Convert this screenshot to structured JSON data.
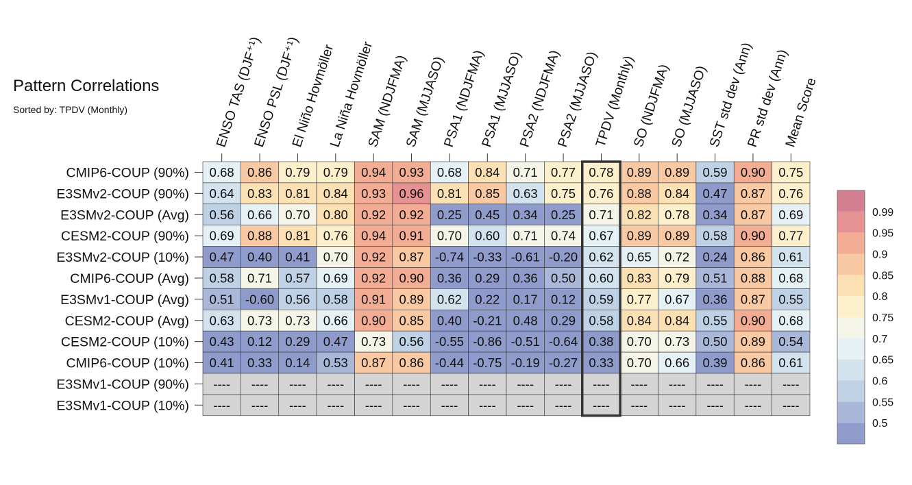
{
  "header": {
    "title": "Pattern Correlations",
    "subtitle": "Sorted by: TPDV (Monthly)"
  },
  "chart_data": {
    "type": "heatmap",
    "title": "Pattern Correlations",
    "subtitle": "Sorted by: TPDV (Monthly)",
    "highlight_column": "TPDV (Monthly)",
    "missing_label": "----",
    "columns": [
      "ENSO TAS (DJF⁺¹)",
      "ENSO PSL (DJF⁺¹)",
      "El Niño Hovmöller",
      "La Niña Hovmöller",
      "SAM (NDJFMA)",
      "SAM (MJJASO)",
      "PSA1 (NDJFMA)",
      "PSA1 (MJJASO)",
      "PSA2 (NDJFMA)",
      "PSA2 (MJJASO)",
      "TPDV (Monthly)",
      "SO (NDJFMA)",
      "SO (MJJASO)",
      "SST std dev (Ann)",
      "PR std dev (Ann)",
      "Mean Score"
    ],
    "rows": [
      {
        "name": "CMIP6-COUP (90%)",
        "values": [
          0.68,
          0.86,
          0.79,
          0.79,
          0.94,
          0.93,
          0.68,
          0.84,
          0.71,
          0.77,
          0.78,
          0.89,
          0.89,
          0.59,
          0.9,
          0.75
        ]
      },
      {
        "name": "E3SMv2-COUP (90%)",
        "values": [
          0.64,
          0.83,
          0.81,
          0.84,
          0.93,
          0.96,
          0.81,
          0.85,
          0.63,
          0.75,
          0.76,
          0.88,
          0.84,
          0.47,
          0.87,
          0.76
        ]
      },
      {
        "name": "E3SMv2-COUP (Avg)",
        "values": [
          0.56,
          0.66,
          0.7,
          0.8,
          0.92,
          0.92,
          0.25,
          0.45,
          0.34,
          0.25,
          0.71,
          0.82,
          0.78,
          0.34,
          0.87,
          0.69
        ]
      },
      {
        "name": "CESM2-COUP (90%)",
        "values": [
          0.69,
          0.88,
          0.81,
          0.76,
          0.94,
          0.91,
          0.7,
          0.6,
          0.71,
          0.74,
          0.67,
          0.89,
          0.89,
          0.58,
          0.9,
          0.77
        ]
      },
      {
        "name": "E3SMv2-COUP (10%)",
        "values": [
          0.47,
          0.4,
          0.41,
          0.7,
          0.92,
          0.87,
          -0.74,
          -0.33,
          -0.61,
          -0.2,
          0.62,
          0.65,
          0.72,
          0.24,
          0.86,
          0.61
        ]
      },
      {
        "name": "CMIP6-COUP (Avg)",
        "values": [
          0.58,
          0.71,
          0.57,
          0.69,
          0.92,
          0.9,
          0.36,
          0.29,
          0.36,
          0.5,
          0.6,
          0.83,
          0.79,
          0.51,
          0.88,
          0.68
        ]
      },
      {
        "name": "E3SMv1-COUP (Avg)",
        "values": [
          0.51,
          -0.6,
          0.56,
          0.58,
          0.91,
          0.89,
          0.62,
          0.22,
          0.17,
          0.12,
          0.59,
          0.77,
          0.67,
          0.36,
          0.87,
          0.55
        ]
      },
      {
        "name": "CESM2-COUP (Avg)",
        "values": [
          0.63,
          0.73,
          0.73,
          0.66,
          0.9,
          0.85,
          0.4,
          -0.21,
          0.48,
          0.29,
          0.58,
          0.84,
          0.84,
          0.55,
          0.9,
          0.68
        ]
      },
      {
        "name": "CESM2-COUP (10%)",
        "values": [
          0.43,
          0.12,
          0.29,
          0.47,
          0.73,
          0.56,
          -0.55,
          -0.86,
          -0.51,
          -0.64,
          0.38,
          0.7,
          0.73,
          0.5,
          0.89,
          0.54
        ]
      },
      {
        "name": "CMIP6-COUP (10%)",
        "values": [
          0.41,
          0.33,
          0.14,
          0.53,
          0.87,
          0.86,
          -0.44,
          -0.75,
          -0.19,
          -0.27,
          0.33,
          0.7,
          0.66,
          0.39,
          0.86,
          0.61
        ]
      },
      {
        "name": "E3SMv1-COUP (90%)",
        "values": [
          null,
          null,
          null,
          null,
          null,
          null,
          null,
          null,
          null,
          null,
          null,
          null,
          null,
          null,
          null,
          null
        ]
      },
      {
        "name": "E3SMv1-COUP (10%)",
        "values": [
          null,
          null,
          null,
          null,
          null,
          null,
          null,
          null,
          null,
          null,
          null,
          null,
          null,
          null,
          null,
          null
        ]
      }
    ],
    "colorbar": {
      "levels": [
        0.5,
        0.55,
        0.6,
        0.65,
        0.7,
        0.75,
        0.8,
        0.85,
        0.9,
        0.95,
        0.99
      ],
      "labels": [
        "0.5",
        "0.55",
        "0.6",
        "0.65",
        "0.7",
        "0.75",
        "0.8",
        "0.85",
        "0.9",
        "0.95",
        "0.99"
      ],
      "colors": [
        "#8f9ccb",
        "#a9b8d8",
        "#bfd1e5",
        "#d2e3ee",
        "#e5f1f4",
        "#f4f4e8",
        "#fbefcc",
        "#fbe0b4",
        "#f8c9a2",
        "#f2ad94",
        "#e69292",
        "#d47e92"
      ],
      "missing_color": "#d4d4d4"
    }
  }
}
